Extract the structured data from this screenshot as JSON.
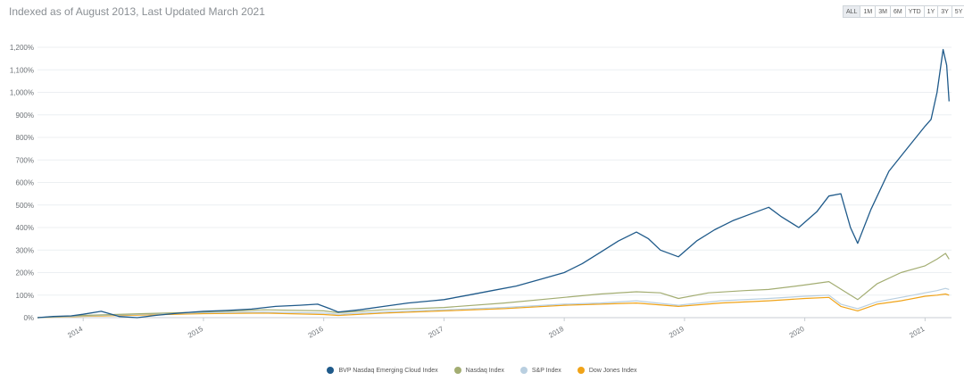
{
  "header": {
    "subtitle": "Indexed as of August 2013, Last Updated March 2021"
  },
  "range_buttons": [
    {
      "label": "ALL",
      "active": true
    },
    {
      "label": "1M",
      "active": false
    },
    {
      "label": "3M",
      "active": false
    },
    {
      "label": "6M",
      "active": false
    },
    {
      "label": "YTD",
      "active": false
    },
    {
      "label": "1Y",
      "active": false
    },
    {
      "label": "3Y",
      "active": false
    },
    {
      "label": "5Y",
      "active": false
    }
  ],
  "chart_data": {
    "type": "line",
    "title": "",
    "xlabel": "",
    "ylabel": "",
    "ylim": [
      0,
      1200
    ],
    "y_ticks": [
      "0%",
      "100%",
      "200%",
      "300%",
      "400%",
      "500%",
      "600%",
      "700%",
      "800%",
      "900%",
      "1,000%",
      "1,100%",
      "1,200%"
    ],
    "x_ticks": [
      {
        "label": "2014",
        "x": 2014.0
      },
      {
        "label": "2015",
        "x": 2015.0
      },
      {
        "label": "2016",
        "x": 2016.0
      },
      {
        "label": "2017",
        "x": 2017.0
      },
      {
        "label": "2018",
        "x": 2018.0
      },
      {
        "label": "2019",
        "x": 2019.0
      },
      {
        "label": "2020",
        "x": 2020.0
      },
      {
        "label": "2021",
        "x": 2021.0
      }
    ],
    "xlim": [
      2013.62,
      2021.22
    ],
    "grid": true,
    "legend_position": "bottom-center",
    "series": [
      {
        "name": "BVP Nasdaq Emerging Cloud Index",
        "color": "#1f5a8a",
        "points": [
          [
            2013.62,
            0
          ],
          [
            2013.75,
            5
          ],
          [
            2013.9,
            8
          ],
          [
            2014.0,
            15
          ],
          [
            2014.15,
            28
          ],
          [
            2014.3,
            5
          ],
          [
            2014.45,
            0
          ],
          [
            2014.6,
            10
          ],
          [
            2014.8,
            20
          ],
          [
            2015.0,
            28
          ],
          [
            2015.2,
            32
          ],
          [
            2015.4,
            38
          ],
          [
            2015.6,
            50
          ],
          [
            2015.8,
            55
          ],
          [
            2015.95,
            60
          ],
          [
            2016.05,
            40
          ],
          [
            2016.12,
            25
          ],
          [
            2016.3,
            35
          ],
          [
            2016.5,
            50
          ],
          [
            2016.7,
            65
          ],
          [
            2016.9,
            75
          ],
          [
            2017.0,
            80
          ],
          [
            2017.2,
            100
          ],
          [
            2017.4,
            120
          ],
          [
            2017.6,
            140
          ],
          [
            2017.8,
            170
          ],
          [
            2018.0,
            200
          ],
          [
            2018.15,
            240
          ],
          [
            2018.3,
            290
          ],
          [
            2018.45,
            340
          ],
          [
            2018.6,
            380
          ],
          [
            2018.7,
            350
          ],
          [
            2018.8,
            300
          ],
          [
            2018.95,
            270
          ],
          [
            2019.1,
            340
          ],
          [
            2019.25,
            390
          ],
          [
            2019.4,
            430
          ],
          [
            2019.55,
            460
          ],
          [
            2019.7,
            490
          ],
          [
            2019.8,
            450
          ],
          [
            2019.95,
            400
          ],
          [
            2020.1,
            470
          ],
          [
            2020.2,
            540
          ],
          [
            2020.3,
            550
          ],
          [
            2020.38,
            400
          ],
          [
            2020.44,
            330
          ],
          [
            2020.55,
            480
          ],
          [
            2020.7,
            650
          ],
          [
            2020.85,
            750
          ],
          [
            2021.0,
            850
          ],
          [
            2021.05,
            880
          ],
          [
            2021.1,
            1000
          ],
          [
            2021.15,
            1190
          ],
          [
            2021.18,
            1120
          ],
          [
            2021.2,
            960
          ]
        ]
      },
      {
        "name": "Nasdaq Index",
        "color": "#a3ad72",
        "points": [
          [
            2013.62,
            0
          ],
          [
            2014.0,
            10
          ],
          [
            2014.5,
            18
          ],
          [
            2015.0,
            25
          ],
          [
            2015.5,
            35
          ],
          [
            2016.0,
            30
          ],
          [
            2016.12,
            22
          ],
          [
            2016.5,
            35
          ],
          [
            2017.0,
            45
          ],
          [
            2017.5,
            65
          ],
          [
            2018.0,
            90
          ],
          [
            2018.3,
            105
          ],
          [
            2018.6,
            115
          ],
          [
            2018.8,
            110
          ],
          [
            2018.95,
            85
          ],
          [
            2019.2,
            110
          ],
          [
            2019.5,
            120
          ],
          [
            2019.7,
            125
          ],
          [
            2020.0,
            145
          ],
          [
            2020.2,
            160
          ],
          [
            2020.35,
            110
          ],
          [
            2020.44,
            80
          ],
          [
            2020.6,
            150
          ],
          [
            2020.8,
            200
          ],
          [
            2021.0,
            230
          ],
          [
            2021.1,
            260
          ],
          [
            2021.17,
            285
          ],
          [
            2021.2,
            260
          ]
        ]
      },
      {
        "name": "S&P Index",
        "color": "#b9cfe0",
        "points": [
          [
            2013.62,
            0
          ],
          [
            2014.0,
            8
          ],
          [
            2014.5,
            15
          ],
          [
            2015.0,
            22
          ],
          [
            2015.5,
            25
          ],
          [
            2016.0,
            20
          ],
          [
            2016.12,
            15
          ],
          [
            2016.5,
            25
          ],
          [
            2017.0,
            35
          ],
          [
            2017.5,
            45
          ],
          [
            2018.0,
            60
          ],
          [
            2018.3,
            65
          ],
          [
            2018.6,
            75
          ],
          [
            2018.95,
            55
          ],
          [
            2019.3,
            75
          ],
          [
            2019.7,
            85
          ],
          [
            2020.0,
            95
          ],
          [
            2020.2,
            100
          ],
          [
            2020.3,
            60
          ],
          [
            2020.44,
            40
          ],
          [
            2020.6,
            70
          ],
          [
            2020.8,
            90
          ],
          [
            2021.0,
            110
          ],
          [
            2021.1,
            120
          ],
          [
            2021.17,
            130
          ],
          [
            2021.2,
            125
          ]
        ]
      },
      {
        "name": "Dow Jones Index",
        "color": "#f0a318",
        "points": [
          [
            2013.62,
            0
          ],
          [
            2014.0,
            6
          ],
          [
            2014.5,
            12
          ],
          [
            2015.0,
            18
          ],
          [
            2015.5,
            20
          ],
          [
            2016.0,
            14
          ],
          [
            2016.12,
            10
          ],
          [
            2016.5,
            20
          ],
          [
            2017.0,
            30
          ],
          [
            2017.5,
            40
          ],
          [
            2018.0,
            55
          ],
          [
            2018.3,
            60
          ],
          [
            2018.6,
            65
          ],
          [
            2018.95,
            50
          ],
          [
            2019.3,
            65
          ],
          [
            2019.7,
            75
          ],
          [
            2020.0,
            85
          ],
          [
            2020.2,
            90
          ],
          [
            2020.3,
            50
          ],
          [
            2020.44,
            30
          ],
          [
            2020.6,
            60
          ],
          [
            2020.8,
            75
          ],
          [
            2021.0,
            95
          ],
          [
            2021.1,
            100
          ],
          [
            2021.17,
            105
          ],
          [
            2021.2,
            100
          ]
        ]
      }
    ]
  }
}
